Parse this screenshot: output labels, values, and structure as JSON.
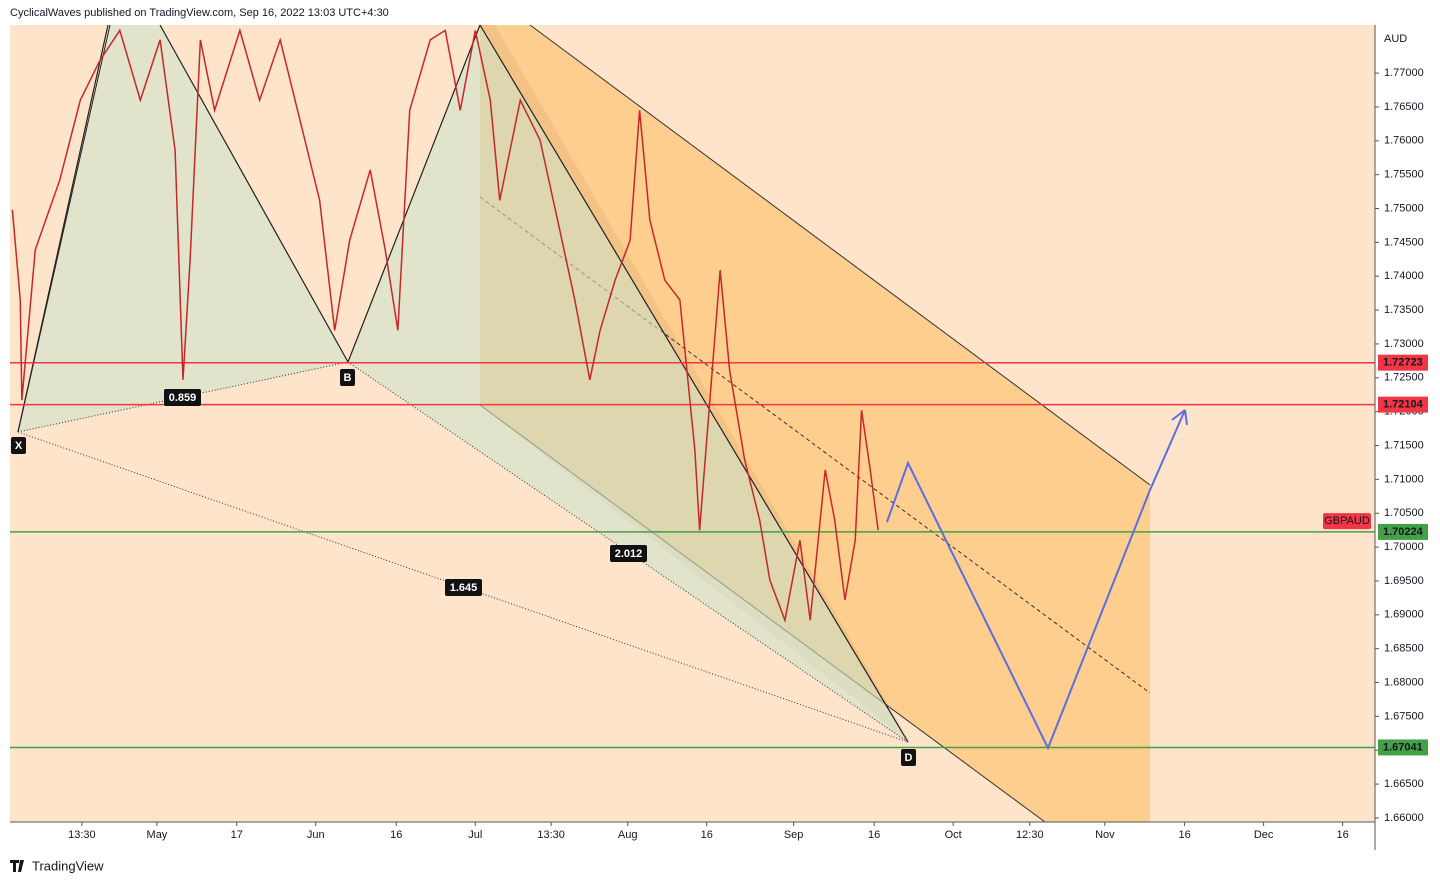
{
  "header": "CyclicalWaves published on TradingView.com, Sep 16, 2022 13:03 UTC+4:30",
  "footer": "TradingView",
  "chart_data": {
    "type": "line",
    "currency": "AUD",
    "symbol": "GBPAUD",
    "x": [
      0.3,
      1.3,
      1.5,
      3.2,
      6.3,
      8.9,
      11.4,
      13.9,
      16.5,
      19,
      20.9,
      21.9,
      22.8,
      24.1,
      25.9,
      29.1,
      31.6,
      34.2,
      36.7,
      39.2,
      41.1,
      43,
      45.6,
      47.5,
      49.1,
      50.6,
      53.2,
      55.1,
      57,
      58.9,
      60.8,
      62,
      64.6,
      67.1,
      69.6,
      71.5,
      73.4,
      74.7,
      76.6,
      78.5,
      79.7,
      81,
      82.9,
      84.8,
      86.7,
      87.3,
      88.6,
      89.9,
      91.1,
      93,
      94.9,
      96.2,
      98.1,
      100,
      101.3,
      103.2,
      104.4,
      105.7,
      107,
      107.8,
      108.9,
      109.9
    ],
    "series": [
      {
        "name": "GBPAUD",
        "color": "#c62828",
        "values": [
          1.7498,
          1.7365,
          1.7217,
          1.7439,
          1.7542,
          1.766,
          1.7719,
          1.7763,
          1.766,
          1.7749,
          1.7586,
          1.7247,
          1.7424,
          1.7749,
          1.7645,
          1.7763,
          1.766,
          1.7749,
          1.7631,
          1.7512,
          1.732,
          1.7453,
          1.7557,
          1.7439,
          1.732,
          1.7645,
          1.7749,
          1.7763,
          1.7645,
          1.7763,
          1.766,
          1.7512,
          1.766,
          1.7601,
          1.7468,
          1.7365,
          1.7247,
          1.732,
          1.7394,
          1.7453,
          1.7645,
          1.7483,
          1.7394,
          1.7365,
          1.7143,
          1.7025,
          1.7217,
          1.7409,
          1.7261,
          1.7129,
          1.704,
          1.6951,
          1.6892,
          1.701,
          1.6892,
          1.7114,
          1.704,
          1.6922,
          1.701,
          1.7202,
          1.7114,
          1.7025
        ]
      }
    ],
    "xlim": [
      0,
      172.8
    ],
    "xticks": [
      {
        "value": 9.1,
        "label": "13:30"
      },
      {
        "value": 18.6,
        "label": "May"
      },
      {
        "value": 28.7,
        "label": "17"
      },
      {
        "value": 38.7,
        "label": "Jun"
      },
      {
        "value": 48.9,
        "label": "16"
      },
      {
        "value": 58.9,
        "label": "Jul"
      },
      {
        "value": 68.5,
        "label": "13:30"
      },
      {
        "value": 78.2,
        "label": "Aug"
      },
      {
        "value": 88.2,
        "label": "16"
      },
      {
        "value": 99.2,
        "label": "Sep"
      },
      {
        "value": 109.4,
        "label": "16"
      },
      {
        "value": 119.4,
        "label": "Oct"
      },
      {
        "value": 129.1,
        "label": "12:30"
      },
      {
        "value": 138.6,
        "label": "Nov"
      },
      {
        "value": 148.7,
        "label": "16"
      },
      {
        "value": 158.7,
        "label": "Dec"
      },
      {
        "value": 168.7,
        "label": "16"
      }
    ],
    "ylim": [
      1.6594,
      1.7771
    ],
    "yticks": [
      {
        "value": 1.66,
        "label": "1.66000"
      },
      {
        "value": 1.665,
        "label": "1.66500"
      },
      {
        "value": 1.67,
        "label": "1.67000"
      },
      {
        "value": 1.675,
        "label": "1.67500"
      },
      {
        "value": 1.68,
        "label": "1.68000"
      },
      {
        "value": 1.685,
        "label": "1.68500"
      },
      {
        "value": 1.69,
        "label": "1.69000"
      },
      {
        "value": 1.695,
        "label": "1.69500"
      },
      {
        "value": 1.7,
        "label": "1.70000"
      },
      {
        "value": 1.705,
        "label": "1.70500"
      },
      {
        "value": 1.71,
        "label": "1.71000"
      },
      {
        "value": 1.715,
        "label": "1.71500"
      },
      {
        "value": 1.72,
        "label": "1.72000"
      },
      {
        "value": 1.725,
        "label": "1.72500"
      },
      {
        "value": 1.73,
        "label": "1.73000"
      },
      {
        "value": 1.735,
        "label": "1.73500"
      },
      {
        "value": 1.74,
        "label": "1.74000"
      },
      {
        "value": 1.745,
        "label": "1.74500"
      },
      {
        "value": 1.75,
        "label": "1.75000"
      },
      {
        "value": 1.755,
        "label": "1.75500"
      },
      {
        "value": 1.76,
        "label": "1.76000"
      },
      {
        "value": 1.765,
        "label": "1.76500"
      },
      {
        "value": 1.77,
        "label": "1.77000"
      }
    ],
    "levels": [
      {
        "value": 1.72723,
        "color": "#f23645"
      },
      {
        "value": 1.72104,
        "color": "#f23645"
      },
      {
        "value": 1.70224,
        "color": "#43a047"
      },
      {
        "value": 1.67041,
        "color": "#43a047"
      }
    ],
    "pattern": {
      "points": [
        "X",
        "B",
        "D"
      ],
      "ratios": [
        0.859,
        2.012,
        1.645
      ]
    }
  }
}
